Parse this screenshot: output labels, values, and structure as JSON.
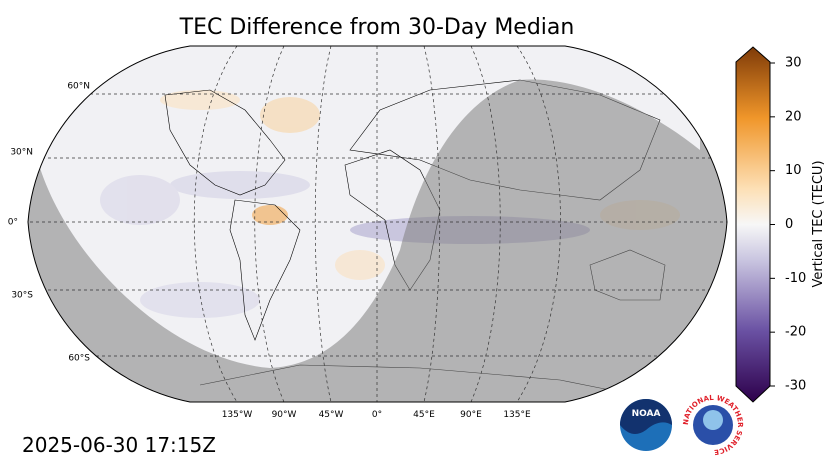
{
  "title": "TEC Difference from 30-Day Median",
  "lat_labels": [
    "60°N",
    "30°N",
    "0°",
    "30°S",
    "60°S"
  ],
  "lon_labels": [
    "135°W",
    "90°W",
    "45°W",
    "0°",
    "45°E",
    "90°E",
    "135°E"
  ],
  "colorbar": {
    "label": "Vertical TEC (TECU)",
    "range": [
      -30,
      30
    ],
    "ticks": [
      -30,
      -20,
      -10,
      0,
      10,
      20,
      30
    ]
  },
  "timestamp": "2025-06-30 17:15Z",
  "logos": {
    "noaa": "NOAA",
    "nws": "NATIONAL WEATHER SERVICE"
  }
}
